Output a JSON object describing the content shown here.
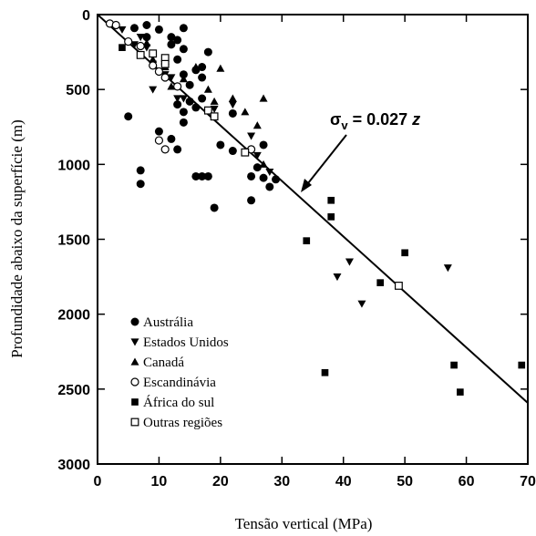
{
  "chart_data": {
    "type": "scatter",
    "xlabel": "Tensão vertical (MPa)",
    "ylabel": "Profundidade abaixo da superfície (m)",
    "xlim": [
      0,
      70
    ],
    "ylim": [
      0,
      3000
    ],
    "y_inverted": true,
    "x_ticks": [
      "0",
      "10",
      "20",
      "30",
      "40",
      "50",
      "60",
      "70"
    ],
    "y_ticks": [
      "0",
      "500",
      "1000",
      "1500",
      "2000",
      "2500",
      "3000"
    ],
    "grid": false,
    "legend_position": "bottom-left",
    "series": [
      {
        "name": "Austrália",
        "marker": "circle-filled",
        "points": [
          [
            6,
            90
          ],
          [
            8,
            70
          ],
          [
            8,
            150
          ],
          [
            10,
            100
          ],
          [
            12,
            150
          ],
          [
            14,
            90
          ],
          [
            12,
            200
          ],
          [
            13,
            170
          ],
          [
            14,
            230
          ],
          [
            11,
            330
          ],
          [
            13,
            300
          ],
          [
            14,
            400
          ],
          [
            15,
            470
          ],
          [
            16,
            370
          ],
          [
            17,
            350
          ],
          [
            17,
            420
          ],
          [
            18,
            250
          ],
          [
            17,
            560
          ],
          [
            15,
            580
          ],
          [
            16,
            620
          ],
          [
            13,
            600
          ],
          [
            14,
            650
          ],
          [
            14,
            720
          ],
          [
            12,
            830
          ],
          [
            13,
            900
          ],
          [
            5,
            680
          ],
          [
            10,
            780
          ],
          [
            7,
            1040
          ],
          [
            7,
            1130
          ],
          [
            16,
            1080
          ],
          [
            17,
            1080
          ],
          [
            18,
            1080
          ],
          [
            19,
            1290
          ],
          [
            20,
            870
          ],
          [
            22,
            910
          ],
          [
            22,
            660
          ],
          [
            25,
            900
          ],
          [
            25,
            1080
          ],
          [
            25,
            1240
          ],
          [
            26,
            1020
          ],
          [
            27,
            1090
          ],
          [
            27,
            870
          ],
          [
            28,
            1150
          ],
          [
            29,
            1100
          ]
        ]
      },
      {
        "name": "Estados Unidos",
        "marker": "triangle-down",
        "points": [
          [
            4,
            100
          ],
          [
            6,
            200
          ],
          [
            7,
            150
          ],
          [
            8,
            220
          ],
          [
            9,
            330
          ],
          [
            10,
            380
          ],
          [
            11,
            400
          ],
          [
            12,
            420
          ],
          [
            9,
            500
          ],
          [
            13,
            560
          ],
          [
            14,
            560
          ],
          [
            19,
            630
          ],
          [
            22,
            600
          ],
          [
            25,
            810
          ],
          [
            26,
            940
          ],
          [
            28,
            1050
          ],
          [
            39,
            1750
          ],
          [
            41,
            1650
          ],
          [
            43,
            1930
          ],
          [
            57,
            1690
          ]
        ]
      },
      {
        "name": "Canadá",
        "marker": "triangle-up",
        "points": [
          [
            8,
            190
          ],
          [
            9,
            300
          ],
          [
            11,
            350
          ],
          [
            12,
            480
          ],
          [
            14,
            430
          ],
          [
            16,
            350
          ],
          [
            18,
            500
          ],
          [
            20,
            360
          ],
          [
            19,
            580
          ],
          [
            22,
            560
          ],
          [
            24,
            650
          ],
          [
            27,
            560
          ],
          [
            26,
            740
          ],
          [
            27,
            1000
          ]
        ]
      },
      {
        "name": "Escandinávia",
        "marker": "circle-open",
        "points": [
          [
            2,
            60
          ],
          [
            3,
            70
          ],
          [
            5,
            180
          ],
          [
            7,
            210
          ],
          [
            9,
            340
          ],
          [
            10,
            380
          ],
          [
            11,
            420
          ],
          [
            13,
            480
          ],
          [
            10,
            840
          ],
          [
            11,
            900
          ],
          [
            25,
            900
          ]
        ]
      },
      {
        "name": "África do sul",
        "marker": "square-filled",
        "points": [
          [
            4,
            220
          ],
          [
            34,
            1510
          ],
          [
            38,
            1350
          ],
          [
            38,
            1240
          ],
          [
            46,
            1790
          ],
          [
            50,
            1590
          ],
          [
            37,
            2390
          ],
          [
            58,
            2340
          ],
          [
            59,
            2520
          ],
          [
            69,
            2340
          ]
        ]
      },
      {
        "name": "Outras regiões",
        "marker": "square-open",
        "points": [
          [
            7,
            270
          ],
          [
            9,
            260
          ],
          [
            11,
            290
          ],
          [
            11,
            330
          ],
          [
            18,
            640
          ],
          [
            19,
            680
          ],
          [
            24,
            920
          ],
          [
            49,
            1810
          ]
        ]
      }
    ],
    "trendline": {
      "label_symbol": "σ",
      "label_subscript": "v",
      "label_text": " = 0.027 ",
      "label_variable": "z",
      "slope": 0.027,
      "x_start": 0,
      "x_end": 70
    }
  }
}
